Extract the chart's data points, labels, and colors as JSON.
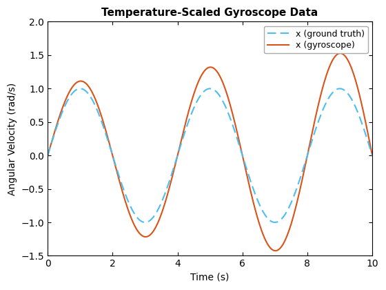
{
  "title": "Temperature-Scaled Gyroscope Data",
  "xlabel": "Time (s)",
  "ylabel": "Angular Velocity (rad/s)",
  "xlim": [
    0,
    10
  ],
  "ylim": [
    -1.5,
    2.0
  ],
  "yticks": [
    -1.5,
    -1.0,
    -0.5,
    0.0,
    0.5,
    1.0,
    1.5,
    2.0
  ],
  "xticks": [
    0,
    2,
    4,
    6,
    8,
    10
  ],
  "ground_truth_color": "#4DBEEE",
  "gyroscope_color": "#D95319",
  "ground_truth_label": "x (ground truth)",
  "gyroscope_label": "x (gyroscope)",
  "ground_truth_linestyle": "--",
  "gyroscope_linestyle": "-",
  "gt_linewidth": 1.5,
  "gyro_linewidth": 1.5,
  "omega": 1.5707963,
  "gt_amplitude": 1.0,
  "gyro_amp_start": 1.06,
  "gyro_amp_end": 1.58,
  "gyro_phase_shift": 0.0,
  "background_color": "#ffffff",
  "axes_facecolor": "#ffffff",
  "legend_loc": "upper right",
  "title_fontsize": 11,
  "label_fontsize": 10,
  "tick_labelsize": 10
}
